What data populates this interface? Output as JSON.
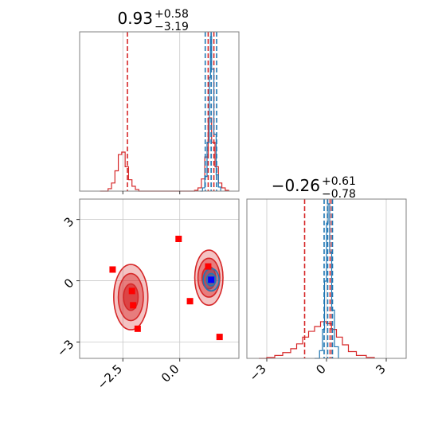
{
  "chart_data": [
    {
      "panel": "hist-param-1",
      "type": "histogram",
      "title": {
        "main": "0.93",
        "sup": "+0.58",
        "sub": "−3.19"
      },
      "x_range": [
        -4.4,
        2.6
      ],
      "x_ticks": [
        -2.5,
        0.0
      ],
      "grid": true,
      "series": [
        {
          "name": "",
          "color": "#d62728",
          "bins": [
            [
              -3.5,
              0
            ],
            [
              -3.15,
              3
            ],
            [
              -3.0,
              10
            ],
            [
              -2.85,
              25
            ],
            [
              -2.7,
              45
            ],
            [
              -2.55,
              48
            ],
            [
              -2.4,
              30
            ],
            [
              -2.25,
              14
            ],
            [
              -2.1,
              6
            ],
            [
              -1.95,
              2
            ],
            [
              -1.8,
              0
            ],
            [
              0.5,
              0
            ],
            [
              0.65,
              1
            ],
            [
              0.8,
              4
            ],
            [
              0.95,
              15
            ],
            [
              1.1,
              42
            ],
            [
              1.25,
              90
            ],
            [
              1.4,
              60
            ],
            [
              1.55,
              30
            ],
            [
              1.7,
              10
            ],
            [
              1.85,
              4
            ],
            [
              2.0,
              1
            ],
            [
              2.15,
              0
            ]
          ],
          "quantile_lines": [
            -2.3,
            1.25,
            1.5
          ]
        },
        {
          "name": "",
          "color": "#1f77b4",
          "bins": [
            [
              0.9,
              0
            ],
            [
              1.0,
              4
            ],
            [
              1.1,
              18
            ],
            [
              1.2,
              60
            ],
            [
              1.3,
              140
            ],
            [
              1.35,
              190
            ],
            [
              1.4,
              150
            ],
            [
              1.5,
              70
            ],
            [
              1.6,
              20
            ],
            [
              1.7,
              5
            ],
            [
              1.8,
              0
            ]
          ],
          "quantile_lines": [
            1.12,
            1.38,
            1.62
          ]
        }
      ]
    },
    {
      "panel": "hist-param-2",
      "type": "histogram",
      "title": {
        "main": "−0.26",
        "sup": "+0.61",
        "sub": "−0.78"
      },
      "x_range": [
        -4.0,
        4.0
      ],
      "x_ticks": [
        -3,
        0,
        3
      ],
      "grid": true,
      "series": [
        {
          "name": "",
          "color": "#d62728",
          "bins": [
            [
              -3.4,
              0
            ],
            [
              -3.0,
              1
            ],
            [
              -2.6,
              3
            ],
            [
              -2.2,
              6
            ],
            [
              -1.8,
              10
            ],
            [
              -1.5,
              15
            ],
            [
              -1.2,
              22
            ],
            [
              -0.9,
              28
            ],
            [
              -0.6,
              33
            ],
            [
              -0.3,
              38
            ],
            [
              0.0,
              36
            ],
            [
              0.25,
              30
            ],
            [
              0.5,
              22
            ],
            [
              0.8,
              14
            ],
            [
              1.1,
              7
            ],
            [
              1.5,
              3
            ],
            [
              2.0,
              1
            ],
            [
              2.4,
              0
            ]
          ],
          "quantile_lines": [
            -1.1,
            0.18,
            0.28
          ]
        },
        {
          "name": "",
          "color": "#1f77b4",
          "bins": [
            [
              -0.6,
              0
            ],
            [
              -0.35,
              8
            ],
            [
              -0.2,
              30
            ],
            [
              -0.1,
              80
            ],
            [
              0.0,
              140
            ],
            [
              0.08,
              160
            ],
            [
              0.16,
              110
            ],
            [
              0.26,
              50
            ],
            [
              0.4,
              12
            ],
            [
              0.6,
              0
            ]
          ],
          "quantile_lines": [
            -0.12,
            0.06,
            0.3
          ]
        }
      ]
    },
    {
      "panel": "corner-2d",
      "type": "scatter",
      "x_range": [
        -4.4,
        2.6
      ],
      "y_range": [
        -3.8,
        4.0
      ],
      "x_ticks": [
        -2.5,
        0.0
      ],
      "y_ticks": [
        -3,
        0,
        3
      ],
      "grid": true,
      "contours": [
        {
          "color": "#d62728",
          "center": [
            -2.15,
            -0.8
          ],
          "radii": [
            [
              0.75,
              1.6
            ],
            [
              0.55,
              1.15
            ],
            [
              0.32,
              0.65
            ]
          ]
        },
        {
          "color": "#d62728",
          "center": [
            1.28,
            0.15
          ],
          "radii": [
            [
              0.62,
              1.35
            ],
            [
              0.48,
              0.95
            ],
            [
              0.3,
              0.55
            ]
          ]
        },
        {
          "color": "#1f77b4",
          "center": [
            1.38,
            0.05
          ],
          "radii": [
            [
              0.35,
              0.55
            ],
            [
              0.2,
              0.3
            ]
          ]
        }
      ],
      "markers": [
        {
          "color": "#ff0000",
          "points": [
            [
              -2.95,
              0.55
            ],
            [
              -2.1,
              -0.5
            ],
            [
              -2.05,
              -1.2
            ],
            [
              -1.85,
              -2.35
            ],
            [
              -0.05,
              2.05
            ],
            [
              0.45,
              -1.0
            ],
            [
              1.25,
              0.7
            ],
            [
              1.75,
              -2.75
            ]
          ]
        },
        {
          "color": "#0000ff",
          "points": [
            [
              1.38,
              0.05
            ]
          ]
        }
      ]
    }
  ]
}
